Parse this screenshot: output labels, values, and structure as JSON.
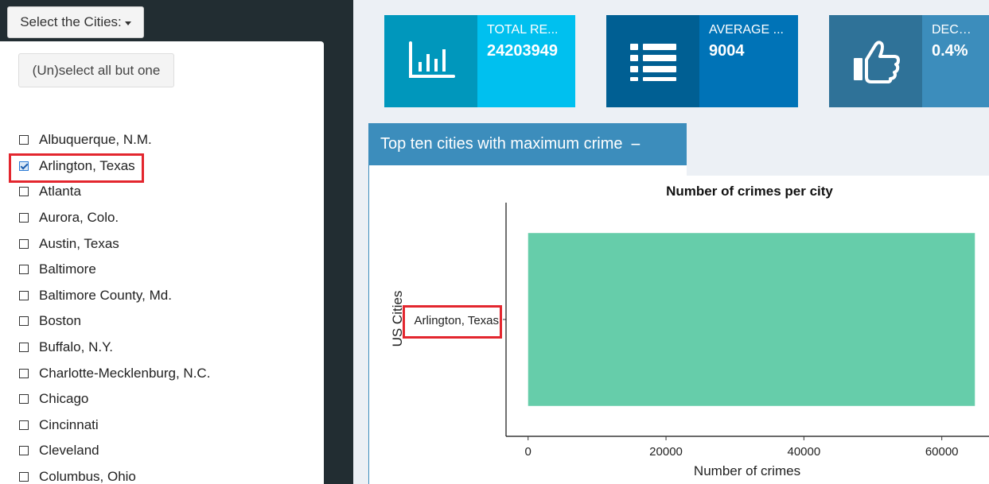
{
  "sidebar": {
    "toggle_label": "Select the Cities:",
    "select_all_label": "(Un)select all but one",
    "cities": [
      {
        "label": "Albuquerque, N.M.",
        "checked": false
      },
      {
        "label": "Arlington, Texas",
        "checked": true
      },
      {
        "label": "Atlanta",
        "checked": false
      },
      {
        "label": "Aurora, Colo.",
        "checked": false
      },
      {
        "label": "Austin, Texas",
        "checked": false
      },
      {
        "label": "Baltimore",
        "checked": false
      },
      {
        "label": "Baltimore County, Md.",
        "checked": false
      },
      {
        "label": "Boston",
        "checked": false
      },
      {
        "label": "Buffalo, N.Y.",
        "checked": false
      },
      {
        "label": "Charlotte-Mecklenburg, N.C.",
        "checked": false
      },
      {
        "label": "Chicago",
        "checked": false
      },
      {
        "label": "Cincinnati",
        "checked": false
      },
      {
        "label": "Cleveland",
        "checked": false
      },
      {
        "label": "Columbus, Ohio",
        "checked": false
      }
    ]
  },
  "info_boxes": [
    {
      "title": "TOTAL RE...",
      "value": "24203949",
      "icon": "bar-chart-icon",
      "icon_bg": "#0097bc",
      "content_bg": "#00c0ef"
    },
    {
      "title": "AVERAGE ...",
      "value": "9004",
      "icon": "list-icon",
      "icon_bg": "#005f93",
      "content_bg": "#0073b7"
    },
    {
      "title": "DECREASE",
      "value": "0.4%",
      "icon": "thumbs-up-icon",
      "icon_bg": "#2f7298",
      "content_bg": "#3c8dbc"
    }
  ],
  "panel": {
    "title": "Top ten cities with maximum crime",
    "collapse_symbol": "−"
  },
  "chart_data": {
    "type": "bar",
    "orientation": "horizontal",
    "title": "Number of crimes per city",
    "xlabel": "Number of crimes",
    "ylabel": "US Cities",
    "categories": [
      "Arlington, Texas"
    ],
    "values": [
      64800
    ],
    "xlim": [
      -3200,
      68000
    ],
    "xticks": [
      0,
      20000,
      40000,
      60000
    ],
    "xtick_labels": [
      "0",
      "20000",
      "40000",
      "60000"
    ],
    "bar_color": "#66cdaa",
    "grid": false
  }
}
